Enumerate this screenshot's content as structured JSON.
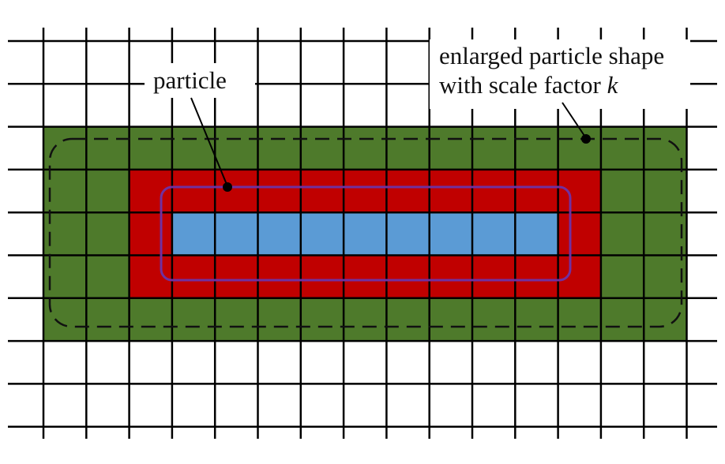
{
  "diagram": {
    "labels": {
      "particle": "particle",
      "enlarged_line1": "enlarged particle shape",
      "enlarged_line2_text": "with scale factor",
      "enlarged_line2_var": "k"
    },
    "colors": {
      "grid": "#000000",
      "outer_region": "#4e7a2b",
      "middle_region": "#c00000",
      "inner_cells": "#5b9bd5",
      "particle_outline": "#7030a0",
      "dashed_outline": "#111111",
      "background": "#ffffff"
    }
  }
}
